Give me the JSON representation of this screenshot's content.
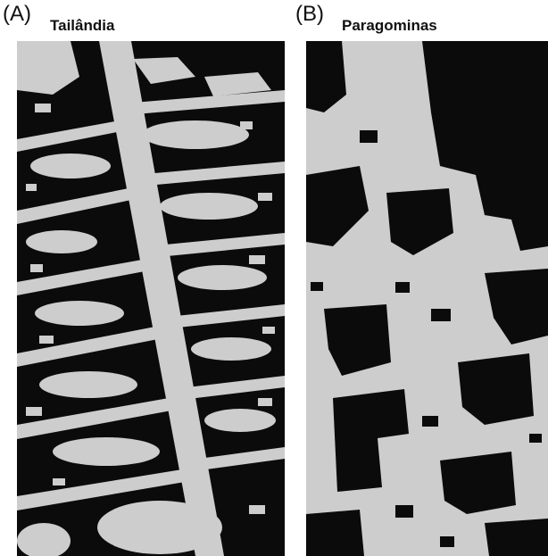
{
  "panels": [
    {
      "letter": "(A)",
      "title": "Tailândia",
      "colors": {
        "forest": "#0b0b0b",
        "cleared": "#cdcdcd"
      }
    },
    {
      "letter": "(B)",
      "title": "Paragominas",
      "colors": {
        "forest": "#0b0b0b",
        "cleared": "#cdcdcd"
      }
    }
  ]
}
